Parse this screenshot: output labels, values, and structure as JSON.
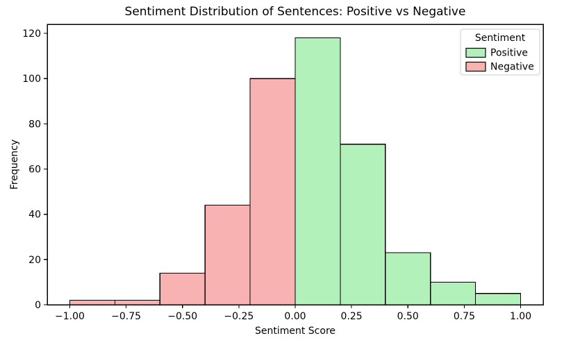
{
  "chart_data": {
    "type": "bar",
    "subtype": "histogram",
    "title": "Sentiment Distribution of Sentences: Positive vs Negative",
    "xlabel": "Sentiment Score",
    "ylabel": "Frequency",
    "xlim": [
      -1.1,
      1.1
    ],
    "ylim": [
      0,
      124
    ],
    "grid": false,
    "bin_width": 0.2,
    "edge_color": "#000000",
    "background_color": "#ffffff",
    "series": [
      {
        "name": "Negative",
        "fill": "#f8b2b2",
        "bins": [
          {
            "x0": -1.0,
            "x1": -0.8,
            "count": 2
          },
          {
            "x0": -0.8,
            "x1": -0.6,
            "count": 2
          },
          {
            "x0": -0.6,
            "x1": -0.4,
            "count": 14
          },
          {
            "x0": -0.4,
            "x1": -0.2,
            "count": 44
          },
          {
            "x0": -0.2,
            "x1": 0.0,
            "count": 100
          }
        ]
      },
      {
        "name": "Positive",
        "fill": "#b2f1b9",
        "bins": [
          {
            "x0": 0.0,
            "x1": 0.2,
            "count": 118
          },
          {
            "x0": 0.2,
            "x1": 0.4,
            "count": 71
          },
          {
            "x0": 0.4,
            "x1": 0.6,
            "count": 23
          },
          {
            "x0": 0.6,
            "x1": 0.8,
            "count": 10
          },
          {
            "x0": 0.8,
            "x1": 1.0,
            "count": 5
          }
        ]
      }
    ],
    "xticks": [
      {
        "value": -1.0,
        "label": "−1.00"
      },
      {
        "value": -0.75,
        "label": "−0.75"
      },
      {
        "value": -0.5,
        "label": "−0.50"
      },
      {
        "value": -0.25,
        "label": "−0.25"
      },
      {
        "value": 0.0,
        "label": "0.00"
      },
      {
        "value": 0.25,
        "label": "0.25"
      },
      {
        "value": 0.5,
        "label": "0.50"
      },
      {
        "value": 0.75,
        "label": "0.75"
      },
      {
        "value": 1.0,
        "label": "1.00"
      }
    ],
    "yticks": [
      {
        "value": 0,
        "label": "0"
      },
      {
        "value": 20,
        "label": "20"
      },
      {
        "value": 40,
        "label": "40"
      },
      {
        "value": 60,
        "label": "60"
      },
      {
        "value": 80,
        "label": "80"
      },
      {
        "value": 100,
        "label": "100"
      },
      {
        "value": 120,
        "label": "120"
      }
    ],
    "legend": {
      "title": "Sentiment",
      "position": "upper right",
      "entries": [
        {
          "label": "Positive",
          "color": "#b2f1b9"
        },
        {
          "label": "Negative",
          "color": "#f8b2b2"
        }
      ]
    }
  }
}
